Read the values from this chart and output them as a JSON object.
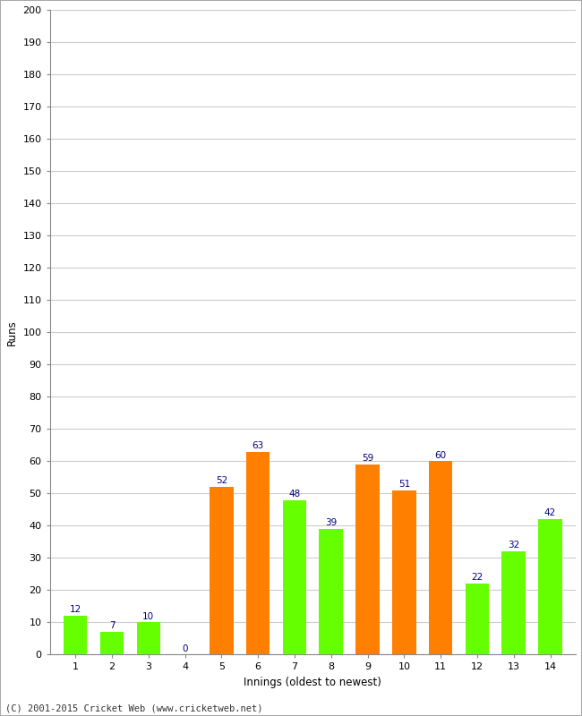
{
  "innings": [
    1,
    2,
    3,
    4,
    5,
    6,
    7,
    8,
    9,
    10,
    11,
    12,
    13,
    14
  ],
  "values": [
    12,
    7,
    10,
    0,
    52,
    63,
    48,
    39,
    59,
    51,
    60,
    22,
    32,
    42
  ],
  "colors": [
    "#66ff00",
    "#66ff00",
    "#66ff00",
    "#66ff00",
    "#ff8000",
    "#ff8000",
    "#66ff00",
    "#66ff00",
    "#ff8000",
    "#ff8000",
    "#ff8000",
    "#66ff00",
    "#66ff00",
    "#66ff00"
  ],
  "xlabel": "Innings (oldest to newest)",
  "ylabel": "Runs",
  "ylim": [
    0,
    200
  ],
  "yticks": [
    0,
    10,
    20,
    30,
    40,
    50,
    60,
    70,
    80,
    90,
    100,
    110,
    120,
    130,
    140,
    150,
    160,
    170,
    180,
    190,
    200
  ],
  "label_color": "#000080",
  "label_fontsize": 7.5,
  "bg_color": "#ffffff",
  "grid_color": "#cccccc",
  "footer": "(C) 2001-2015 Cricket Web (www.cricketweb.net)",
  "bar_width": 0.65,
  "outer_border_color": "#aaaaaa"
}
